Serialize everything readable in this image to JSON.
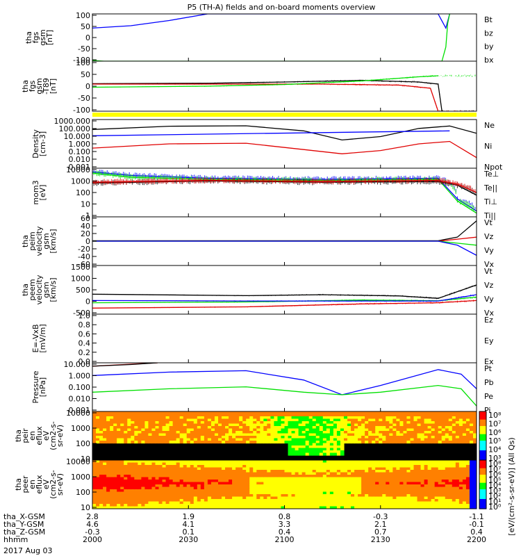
{
  "title": "P5 (TH-A) fields and on-board moments overview",
  "date_label": "2017 Aug 03",
  "colors": {
    "black": "#000000",
    "red": "#e00000",
    "green": "#00e000",
    "blue": "#0000ff",
    "yellow": "#ffff00"
  },
  "chart_data": [
    {
      "type": "line",
      "ylabel": [
        "tha",
        "fgs",
        "gsm",
        "[nT]"
      ],
      "ylim": [
        -100,
        100
      ],
      "yticks": [
        "100",
        "50",
        "0",
        "-50",
        "-100"
      ],
      "legend": [
        {
          "text": "Bt",
          "color": "#000000"
        },
        {
          "text": "bz",
          "color": "#e00000"
        },
        {
          "text": "by",
          "color": "#00e000"
        },
        {
          "text": "bx",
          "color": "#0000ff"
        }
      ],
      "series": [
        {
          "name": "bx",
          "color": "#0000ff",
          "values": [
            [
              0,
              40
            ],
            [
              0.1,
              50
            ],
            [
              0.2,
              72
            ],
            [
              0.3,
              100
            ],
            [
              0.9,
              100
            ],
            [
              0.92,
              40
            ],
            [
              0.93,
              100
            ]
          ]
        },
        {
          "name": "by",
          "color": "#00e000",
          "values": [
            [
              0,
              -97
            ],
            [
              0.03,
              -100
            ],
            [
              0.91,
              -100
            ],
            [
              0.92,
              -40
            ],
            [
              0.925,
              60
            ],
            [
              0.93,
              100
            ]
          ]
        }
      ]
    },
    {
      "type": "line",
      "ylabel": [
        "tha",
        "fgs",
        "gsm",
        "-T89",
        "[nT]"
      ],
      "ylim": [
        -120,
        120
      ],
      "yticks": [
        "100",
        "50",
        "0",
        "-50",
        "-100"
      ],
      "series": [
        {
          "name": "black",
          "color": "#000000",
          "values": [
            [
              0,
              12
            ],
            [
              0.3,
              14
            ],
            [
              0.5,
              20
            ],
            [
              0.7,
              28
            ],
            [
              0.85,
              20
            ],
            [
              0.9,
              10
            ],
            [
              0.91,
              -120
            ]
          ]
        },
        {
          "name": "red",
          "color": "#e00000",
          "values": [
            [
              0,
              10
            ],
            [
              0.3,
              10
            ],
            [
              0.6,
              10
            ],
            [
              0.8,
              5
            ],
            [
              0.88,
              -10
            ],
            [
              0.9,
              -120
            ]
          ]
        },
        {
          "name": "green",
          "color": "#00e000",
          "values": [
            [
              0,
              -5
            ],
            [
              0.3,
              0
            ],
            [
              0.5,
              8
            ],
            [
              0.7,
              25
            ],
            [
              0.85,
              45
            ],
            [
              0.9,
              50
            ]
          ]
        }
      ]
    },
    {
      "type": "line",
      "ylabel": [
        "Density",
        "[cm-3]"
      ],
      "ylim": [
        0.001,
        1000
      ],
      "log": true,
      "yticks": [
        "1000.000",
        "100.000",
        "10.000",
        "1.000",
        "0.100",
        "0.010",
        "0.001"
      ],
      "legend": [
        {
          "text": "Ne",
          "color": "#e00000"
        },
        {
          "text": "Ni",
          "color": "#000000"
        },
        {
          "text": "Npot",
          "color": "#0000ff"
        }
      ],
      "series": [
        {
          "name": "Ni",
          "color": "#000000",
          "values": [
            [
              0,
              60
            ],
            [
              0.2,
              150
            ],
            [
              0.4,
              170
            ],
            [
              0.55,
              40
            ],
            [
              0.65,
              3
            ],
            [
              0.75,
              8
            ],
            [
              0.85,
              80
            ],
            [
              0.93,
              160
            ],
            [
              1,
              20
            ]
          ]
        },
        {
          "name": "Ne",
          "color": "#e00000",
          "values": [
            [
              0,
              0.3
            ],
            [
              0.2,
              1
            ],
            [
              0.4,
              1.2
            ],
            [
              0.55,
              0.2
            ],
            [
              0.65,
              0.06
            ],
            [
              0.75,
              0.15
            ],
            [
              0.85,
              1
            ],
            [
              0.93,
              2
            ],
            [
              1,
              0.02
            ]
          ]
        },
        {
          "name": "Npot",
          "color": "#0000ff",
          "values": [
            [
              0,
              10
            ],
            [
              0.93,
              40
            ]
          ]
        }
      ]
    },
    {
      "type": "line",
      "ylabel": [
        "mom3",
        "[eV]"
      ],
      "ylim": [
        1,
        10000
      ],
      "log": true,
      "yticks": [
        "10000",
        "1000",
        "100",
        "10",
        "1"
      ],
      "legend": [
        {
          "text": "Te⊥",
          "color": "#e00000"
        },
        {
          "text": "Te||",
          "color": "#000000"
        },
        {
          "text": "Ti⊥",
          "color": "#0000ff"
        },
        {
          "text": "Ti||",
          "color": "#00e000"
        }
      ],
      "series": [
        {
          "name": "Ti⊥",
          "color": "#0000ff",
          "values": [
            [
              0,
              5000
            ],
            [
              0.1,
              2500
            ],
            [
              0.3,
              1500
            ],
            [
              0.6,
              1200
            ],
            [
              0.9,
              1500
            ],
            [
              0.95,
              30
            ],
            [
              1,
              3
            ]
          ]
        },
        {
          "name": "Ti||",
          "color": "#00e000",
          "values": [
            [
              0,
              4000
            ],
            [
              0.1,
              1800
            ],
            [
              0.3,
              1200
            ],
            [
              0.6,
              1000
            ],
            [
              0.9,
              1200
            ],
            [
              0.95,
              20
            ],
            [
              1,
              2
            ]
          ]
        },
        {
          "name": "Te||",
          "color": "#000000",
          "values": [
            [
              0,
              600
            ],
            [
              0.3,
              900
            ],
            [
              0.6,
              700
            ],
            [
              0.9,
              800
            ],
            [
              0.95,
              400
            ],
            [
              1,
              60
            ]
          ]
        },
        {
          "name": "Te⊥",
          "color": "#e00000",
          "values": [
            [
              0,
              700
            ],
            [
              0.3,
              1000
            ],
            [
              0.6,
              800
            ],
            [
              0.9,
              1000
            ],
            [
              0.95,
              500
            ],
            [
              1,
              100
            ]
          ]
        }
      ]
    },
    {
      "type": "line",
      "ylabel": [
        "tha",
        "peim",
        "velocity",
        "gsm",
        "[km/s]"
      ],
      "ylim": [
        -60,
        60
      ],
      "yticks": [
        "60",
        "40",
        "20",
        "0",
        "-20",
        "-40",
        "-60"
      ],
      "legend": [
        {
          "text": "Vt",
          "color": "#000000"
        },
        {
          "text": "Vz",
          "color": "#e00000"
        },
        {
          "text": "Vy",
          "color": "#00e000"
        },
        {
          "text": "Vx",
          "color": "#0000ff"
        }
      ],
      "series": [
        {
          "name": "Vt",
          "color": "#000000",
          "values": [
            [
              0,
              1
            ],
            [
              0.9,
              1
            ],
            [
              0.95,
              10
            ],
            [
              1,
              50
            ]
          ]
        },
        {
          "name": "Vz",
          "color": "#e00000",
          "values": [
            [
              0,
              0
            ],
            [
              0.9,
              0
            ],
            [
              0.95,
              5
            ],
            [
              1,
              10
            ]
          ]
        },
        {
          "name": "Vy",
          "color": "#00e000",
          "values": [
            [
              0,
              0
            ],
            [
              0.9,
              0
            ],
            [
              0.95,
              -5
            ],
            [
              1,
              -10
            ]
          ]
        },
        {
          "name": "Vx",
          "color": "#0000ff",
          "values": [
            [
              0,
              0
            ],
            [
              0.9,
              0
            ],
            [
              0.95,
              -10
            ],
            [
              1,
              -35
            ]
          ]
        }
      ]
    },
    {
      "type": "line",
      "ylabel": [
        "tha",
        "peem",
        "velocity",
        "gsm",
        "[km/s]"
      ],
      "ylim": [
        -500,
        1500
      ],
      "yticks": [
        "1500",
        "1000",
        "500",
        "0",
        "-500"
      ],
      "legend": [
        {
          "text": "Vt",
          "color": "#000000"
        },
        {
          "text": "Vz",
          "color": "#e00000"
        },
        {
          "text": "Vy",
          "color": "#00e000"
        },
        {
          "text": "Vx",
          "color": "#0000ff"
        }
      ],
      "series": [
        {
          "name": "Vt",
          "color": "#000000",
          "values": [
            [
              0,
              320
            ],
            [
              0.4,
              260
            ],
            [
              0.6,
              300
            ],
            [
              0.8,
              250
            ],
            [
              0.9,
              150
            ],
            [
              1,
              700
            ]
          ]
        },
        {
          "name": "Vy",
          "color": "#00e000",
          "values": [
            [
              0,
              -30
            ],
            [
              0.4,
              0
            ],
            [
              0.7,
              80
            ],
            [
              0.9,
              50
            ],
            [
              1,
              200
            ]
          ]
        },
        {
          "name": "Vx",
          "color": "#0000ff",
          "values": [
            [
              0,
              60
            ],
            [
              0.4,
              40
            ],
            [
              0.7,
              40
            ],
            [
              0.9,
              40
            ],
            [
              1,
              300
            ]
          ]
        },
        {
          "name": "Vz",
          "color": "#e00000",
          "values": [
            [
              0,
              -250
            ],
            [
              0.4,
              -200
            ],
            [
              0.7,
              -80
            ],
            [
              0.9,
              -30
            ],
            [
              1,
              60
            ]
          ]
        }
      ]
    },
    {
      "type": "line",
      "ylabel": [
        "E=-VxB",
        "[mV/m]"
      ],
      "ylim": [
        0,
        1
      ],
      "yticks": [
        "1.0",
        "0.8",
        "0.6",
        "0.4",
        "0.2",
        "0.0"
      ],
      "legend": [
        {
          "text": "Ez",
          "color": "#e00000"
        },
        {
          "text": "Ey",
          "color": "#00e000"
        },
        {
          "text": "Ex",
          "color": "#0000ff"
        }
      ],
      "series": []
    },
    {
      "type": "line",
      "ylabel": [
        "Pressure",
        "[nPa]"
      ],
      "ylim": [
        0.001,
        20
      ],
      "log": true,
      "yticks": [
        "10.000",
        "1.000",
        "0.100",
        "0.010",
        "0.001"
      ],
      "legend": [
        {
          "text": "Pt",
          "color": "#000000"
        },
        {
          "text": "Pb",
          "color": "#e00000"
        },
        {
          "text": "Pe",
          "color": "#00e000"
        },
        {
          "text": "Pi",
          "color": "#0000ff"
        }
      ],
      "series": [
        {
          "name": "Pi",
          "color": "#0000ff",
          "values": [
            [
              0,
              1.5
            ],
            [
              0.2,
              3
            ],
            [
              0.4,
              4
            ],
            [
              0.55,
              0.6
            ],
            [
              0.65,
              0.03
            ],
            [
              0.75,
              0.2
            ],
            [
              0.9,
              5
            ],
            [
              0.96,
              2
            ],
            [
              1,
              0.1
            ]
          ]
        },
        {
          "name": "Pe",
          "color": "#00e000",
          "values": [
            [
              0,
              0.05
            ],
            [
              0.2,
              0.1
            ],
            [
              0.4,
              0.15
            ],
            [
              0.55,
              0.05
            ],
            [
              0.65,
              0.03
            ],
            [
              0.75,
              0.05
            ],
            [
              0.9,
              0.2
            ],
            [
              0.96,
              0.1
            ],
            [
              1,
              0.003
            ]
          ]
        },
        {
          "name": "Pb",
          "color": "#e00000",
          "values": [
            [
              0,
              10
            ],
            [
              0.1,
              15
            ],
            [
              0.17,
              20
            ]
          ]
        },
        {
          "name": "Pt",
          "color": "#000000",
          "values": [
            [
              0,
              10
            ],
            [
              0.1,
              14
            ],
            [
              0.17,
              20
            ]
          ]
        }
      ]
    },
    {
      "type": "heatmap",
      "ylabel": [
        "tha",
        "peir",
        "en",
        "eflux",
        "eV",
        "(cm2-s-",
        "sr-eV)"
      ],
      "ylim": [
        10,
        10000
      ],
      "log": true,
      "yticks": [
        "10000",
        "1000",
        "100",
        "10"
      ],
      "colorbar": {
        "ticks": [
          "10⁸",
          "10⁷",
          "10⁶",
          "10⁵",
          "10⁴",
          "10³"
        ]
      }
    },
    {
      "type": "heatmap",
      "ylabel": [
        "tha",
        "peer",
        "en",
        "eflux",
        "eV",
        "(cm2-s-",
        "sr-eV)"
      ],
      "ylim": [
        10,
        10000
      ],
      "log": true,
      "yticks": [
        "10000",
        "1000",
        "100",
        "10"
      ],
      "colorbar": {
        "ticks": [
          "10⁸",
          "10⁷",
          "10⁶",
          "10⁵",
          "10⁴",
          "10³",
          "10²",
          "10¹",
          "10⁰"
        ]
      }
    }
  ],
  "colorbar_label": "[eV/(cm²-s-sr-eV)] (All Qs)",
  "xaxis": {
    "rows": [
      {
        "label": "tha_X-GSM",
        "values": [
          "2.8",
          "1.9",
          "0.8",
          "-0.3",
          "-1.1"
        ]
      },
      {
        "label": "tha_Y-GSM",
        "values": [
          "4.6",
          "4.1",
          "3.3",
          "2.1",
          "-0.1"
        ]
      },
      {
        "label": "tha_Z-GSM",
        "values": [
          "-0.3",
          "0.1",
          "0.4",
          "0.7",
          "0.4"
        ]
      },
      {
        "label": "hhmm",
        "values": [
          "2000",
          "2030",
          "2100",
          "2130",
          "2200"
        ]
      }
    ]
  }
}
